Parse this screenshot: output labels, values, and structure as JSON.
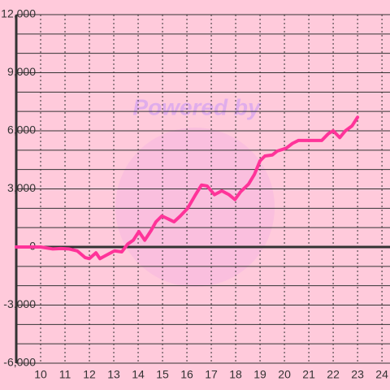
{
  "chart_data": {
    "type": "line",
    "watermark": "Powered by",
    "x": [
      9,
      10,
      10.5,
      10.83,
      11.17,
      11.5,
      11.83,
      12,
      12.27,
      12.43,
      12.73,
      13.03,
      13.33,
      13.57,
      13.8,
      14.03,
      14.27,
      14.53,
      14.73,
      14.97,
      15.23,
      15.47,
      15.73,
      16.03,
      16.33,
      16.6,
      16.83,
      17.13,
      17.43,
      17.73,
      17.97,
      18.2,
      18.53,
      18.77,
      19,
      19.2,
      19.5,
      19.7,
      20.07,
      20.33,
      20.57,
      21,
      21.53,
      21.8,
      22,
      22.27,
      22.5,
      22.77,
      23
    ],
    "series": [
      {
        "name": "",
        "color": "#ff3399",
        "values": [
          0,
          0,
          -100,
          -80,
          -100,
          -200,
          -550,
          -600,
          -300,
          -600,
          -400,
          -200,
          -250,
          150,
          350,
          800,
          350,
          850,
          1300,
          1600,
          1450,
          1300,
          1600,
          2000,
          2650,
          3200,
          3150,
          2700,
          2900,
          2700,
          2450,
          2850,
          3250,
          3750,
          4450,
          4700,
          4750,
          4950,
          5100,
          5350,
          5500,
          5500,
          5500,
          5850,
          6000,
          5650,
          6000,
          6250,
          6700
        ]
      }
    ],
    "xlim": [
      9,
      24.33
    ],
    "xticks": [
      10,
      11,
      12,
      13,
      14,
      15,
      16,
      17,
      18,
      19,
      20,
      21,
      22,
      23,
      24
    ],
    "ylim": [
      -6000,
      12000
    ],
    "yticks": [
      {
        "value": -6000,
        "label": "-6,000"
      },
      {
        "value": -3000,
        "label": "-3,000"
      },
      0,
      {
        "value": 3000,
        "label": "3,000"
      },
      {
        "value": 6000,
        "label": "6,000"
      },
      {
        "value": 9000,
        "label": "9,000"
      },
      {
        "value": 12000,
        "label": "12,000"
      }
    ],
    "ygridlines": [
      -5000,
      -4000,
      -2000,
      -1000,
      1000,
      2000,
      4000,
      5000,
      7000,
      8000,
      10000,
      11000
    ],
    "grid": true
  }
}
